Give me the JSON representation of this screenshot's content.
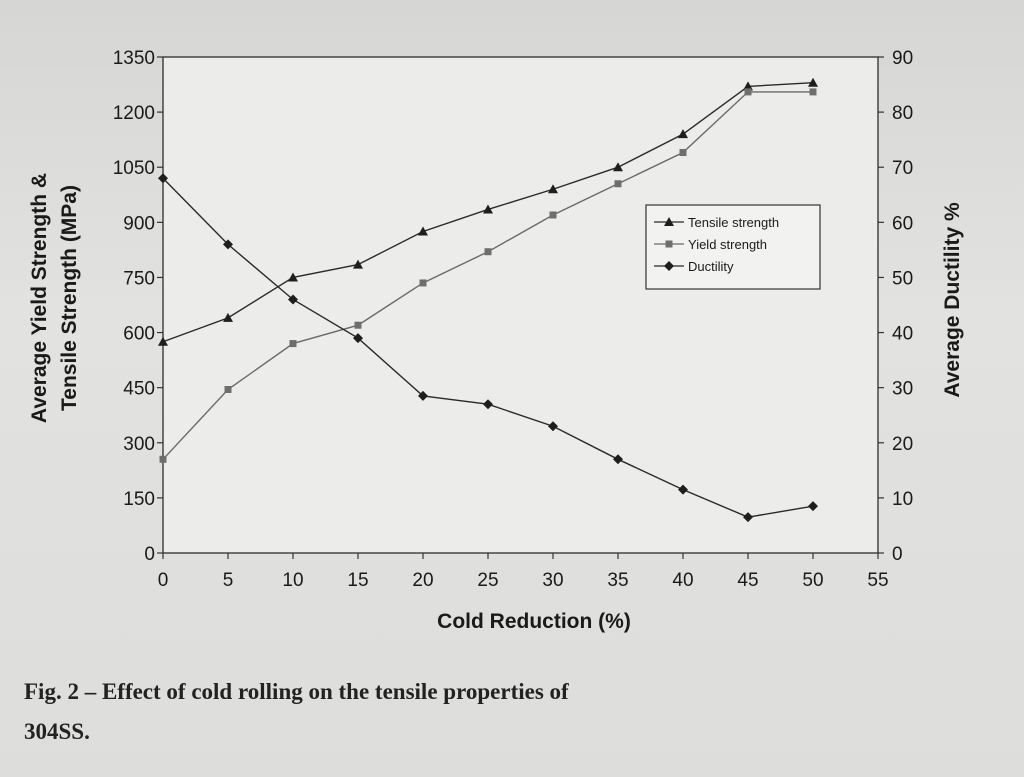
{
  "caption": {
    "line1": "Fig. 2 – Effect of cold rolling on the tensile properties of",
    "line2": "304SS."
  },
  "chart_data": {
    "type": "line",
    "x": [
      0,
      5,
      10,
      15,
      20,
      25,
      30,
      35,
      40,
      45,
      50
    ],
    "xlabel": "Cold Reduction (%)",
    "ylabel": [
      "Average Yield Strength &",
      "Tensile Strength (MPa)"
    ],
    "y2label": "Average Ductility %",
    "xlim": [
      0,
      55
    ],
    "ylim": [
      0,
      1350
    ],
    "y2lim": [
      0,
      90
    ],
    "xticks": [
      "0",
      "5",
      "10",
      "15",
      "20",
      "25",
      "30",
      "35",
      "40",
      "45",
      "50",
      "55"
    ],
    "yticks": [
      "0",
      "150",
      "300",
      "450",
      "600",
      "750",
      "900",
      "1050",
      "1200",
      "1350"
    ],
    "y2ticks": [
      "0",
      "10",
      "20",
      "30",
      "40",
      "50",
      "60",
      "70",
      "80",
      "90"
    ],
    "legend_position": "right",
    "series": [
      {
        "name": "Tensile strength",
        "axis": "left",
        "marker": "triangle",
        "values": [
          575,
          640,
          750,
          785,
          875,
          935,
          990,
          1050,
          1140,
          1270,
          1280
        ]
      },
      {
        "name": "Yield strength",
        "axis": "left",
        "marker": "square",
        "values": [
          255,
          445,
          570,
          620,
          735,
          820,
          920,
          1005,
          1090,
          1255,
          1255
        ]
      },
      {
        "name": "Ductility",
        "axis": "right",
        "marker": "diamond",
        "values": [
          68,
          56,
          46,
          39,
          28.5,
          27,
          23,
          17,
          11.5,
          6.5,
          8.5
        ]
      }
    ]
  }
}
